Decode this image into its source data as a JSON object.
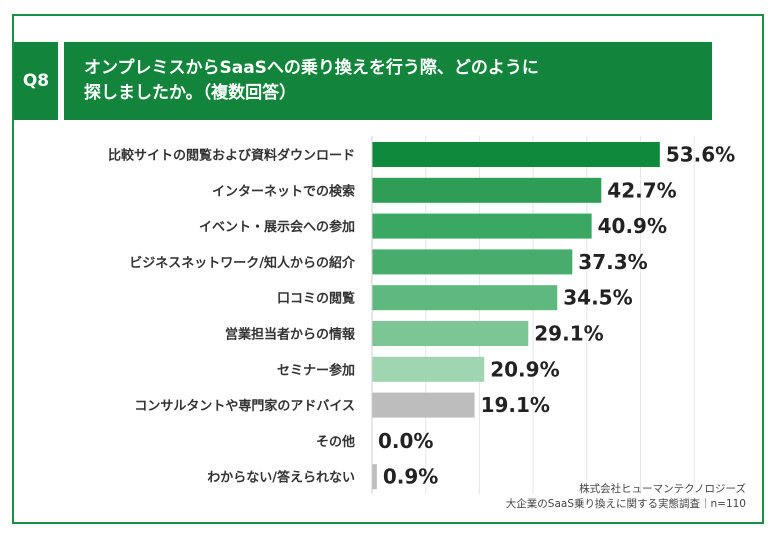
{
  "question": {
    "number": "Q8",
    "title_line1": "オンプレミスからSaaSへの乗り換えを行う際、どのように",
    "title_line2": "探しましたか。（複数回答）"
  },
  "source": {
    "company": "株式会社ヒューマンテクノロジーズ",
    "survey": "大企業のSaaS乗り換えに関する実態調査｜n=110"
  },
  "chart_data": {
    "type": "bar",
    "orientation": "horizontal",
    "title": "オンプレミスからSaaSへの乗り換えを行う際、どのように探しましたか。（複数回答）",
    "unit": "%",
    "xlim": [
      0,
      60
    ],
    "grid": true,
    "categories": [
      "比較サイトの閲覧および資料ダウンロード",
      "インターネットでの検索",
      "イベント・展示会への参加",
      "ビジネスネットワーク/知人からの紹介",
      "口コミの閲覧",
      "営業担当者からの情報",
      "セミナー参加",
      "コンサルタントや専門家のアドバイス",
      "その他",
      "わからない/答えられない"
    ],
    "values": [
      53.6,
      42.7,
      40.9,
      37.3,
      34.5,
      29.1,
      20.9,
      19.1,
      0.0,
      0.9
    ],
    "value_labels": [
      "53.6%",
      "42.7%",
      "40.9%",
      "37.3%",
      "34.5%",
      "29.1%",
      "20.9%",
      "19.1%",
      "0.0%",
      "0.9%"
    ],
    "bar_colors": [
      "#0f8a3c",
      "#2e9e57",
      "#3aa863",
      "#48ad6c",
      "#5db97d",
      "#7cc695",
      "#9fd5b1",
      "#bdbdbd",
      "#bdbdbd",
      "#bdbdbd"
    ]
  }
}
